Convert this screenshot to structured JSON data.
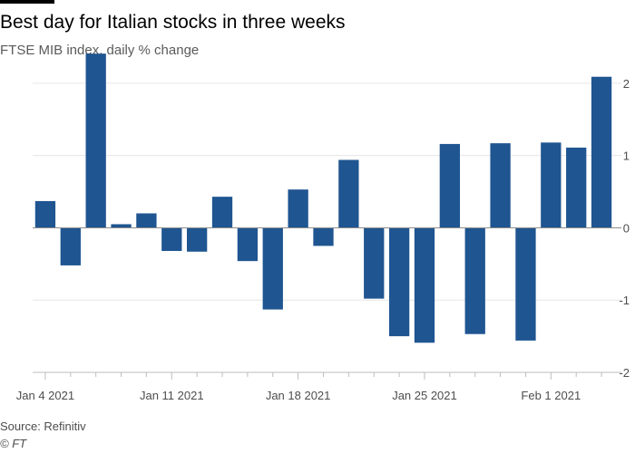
{
  "header": {
    "title": "Best day for Italian stocks in three weeks",
    "subtitle": "FTSE MIB index, daily % change"
  },
  "footer": {
    "source": "Source: Refinitiv",
    "credit": "© FT"
  },
  "colors": {
    "bar": "#1f5591",
    "grid": "#e6e6e6",
    "axis": "#bdbdbd",
    "zero_line": "#8c8c8c",
    "tick_text": "#4d4d4d"
  },
  "chart_data": {
    "type": "bar",
    "title": "Best day for Italian stocks in three weeks",
    "subtitle": "FTSE MIB index, daily % change",
    "xlabel": "",
    "ylabel": "",
    "ylim": [
      -2,
      2.4
    ],
    "yticks": [
      -2,
      -1,
      0,
      1,
      2
    ],
    "ytick_labels": [
      "-2",
      "-1",
      "0",
      "1",
      "2"
    ],
    "y_axis_side": "right",
    "grid": true,
    "x_tick_labels": [
      {
        "label": "Jan 4 2021",
        "index": 0
      },
      {
        "label": "Jan 11 2021",
        "index": 5
      },
      {
        "label": "Jan 18 2021",
        "index": 10
      },
      {
        "label": "Jan 25 2021",
        "index": 15
      },
      {
        "label": "Feb 1 2021",
        "index": 20
      }
    ],
    "categories": [
      "Jan 4",
      "Jan 5",
      "Jan 6",
      "Jan 7",
      "Jan 8",
      "Jan 11",
      "Jan 12",
      "Jan 13",
      "Jan 14",
      "Jan 15",
      "Jan 18",
      "Jan 19",
      "Jan 20",
      "Jan 21",
      "Jan 22",
      "Jan 25",
      "Jan 26",
      "Jan 27",
      "Jan 28",
      "Jan 29",
      "Feb 1",
      "Feb 2",
      "Feb 3"
    ],
    "values": [
      0.37,
      -0.52,
      2.41,
      0.05,
      0.2,
      -0.32,
      -0.33,
      0.43,
      -0.46,
      -1.13,
      0.53,
      -0.25,
      0.94,
      -0.98,
      -1.5,
      -1.59,
      1.16,
      -1.47,
      1.17,
      -1.56,
      1.18,
      1.11,
      2.09
    ]
  }
}
